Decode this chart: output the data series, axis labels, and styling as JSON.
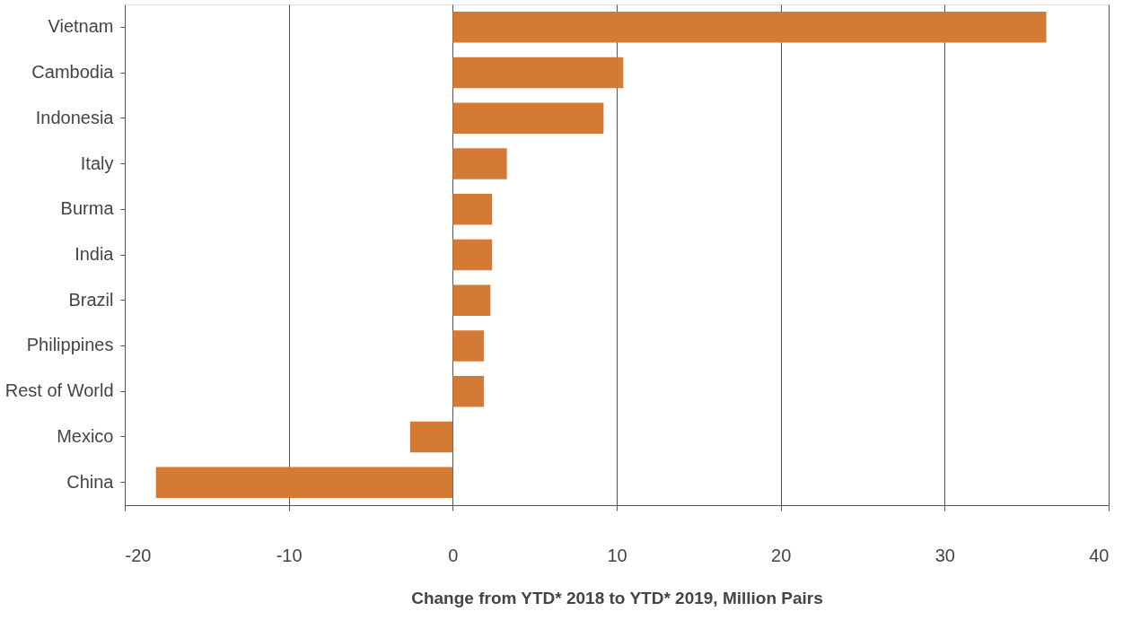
{
  "chart_data": {
    "type": "bar",
    "orientation": "horizontal",
    "xlabel": "Change from YTD* 2018 to YTD* 2019, Million Pairs",
    "categories": [
      "Vietnam",
      "Cambodia",
      "Indonesia",
      "Italy",
      "Burma",
      "India",
      "Brazil",
      "Philippines",
      "Rest of World",
      "Mexico",
      "China"
    ],
    "values": [
      36.2,
      10.4,
      9.2,
      3.3,
      2.4,
      2.4,
      2.3,
      1.9,
      1.9,
      -2.6,
      -18.1
    ],
    "color": "#d57a35",
    "xlim": [
      -20,
      40
    ],
    "xticks": [
      -20,
      -10,
      0,
      10,
      20,
      30,
      40
    ],
    "grid": "x"
  }
}
